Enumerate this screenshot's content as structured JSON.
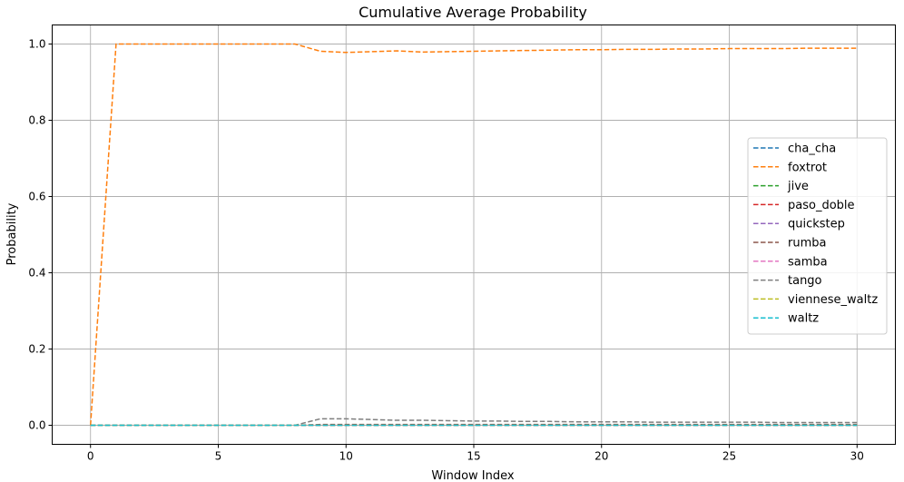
{
  "chart_data": {
    "type": "line",
    "title": "Cumulative Average Probability",
    "xlabel": "Window Index",
    "ylabel": "Probability",
    "xlim": [
      -1.5,
      31.5
    ],
    "ylim": [
      -0.05,
      1.05
    ],
    "xticks": [
      0,
      5,
      10,
      15,
      20,
      25,
      30
    ],
    "xtick_labels": [
      "0",
      "5",
      "10",
      "15",
      "20",
      "25",
      "30"
    ],
    "yticks": [
      0.0,
      0.2,
      0.4,
      0.6,
      0.8,
      1.0
    ],
    "ytick_labels": [
      "0.0",
      "0.2",
      "0.4",
      "0.6",
      "0.8",
      "1.0"
    ],
    "grid": true,
    "legend_position": "center-right",
    "line_style": "dashed",
    "x": [
      0,
      1,
      2,
      3,
      4,
      5,
      6,
      7,
      8,
      9,
      10,
      11,
      12,
      13,
      14,
      15,
      16,
      17,
      18,
      19,
      20,
      21,
      22,
      23,
      24,
      25,
      26,
      27,
      28,
      29,
      30
    ],
    "series": [
      {
        "name": "cha_cha",
        "color": "#1f77b4",
        "values": [
          0,
          0,
          0,
          0,
          0,
          0,
          0,
          0,
          0,
          0,
          0,
          0,
          0,
          0,
          0,
          0,
          0,
          0,
          0,
          0,
          0,
          0,
          0,
          0,
          0,
          0,
          0,
          0,
          0,
          0,
          0
        ]
      },
      {
        "name": "foxtrot",
        "color": "#ff7f0e",
        "values": [
          0,
          1.0,
          1.0,
          1.0,
          1.0,
          1.0,
          1.0,
          1.0,
          1.0,
          0.981,
          0.978,
          0.98,
          0.982,
          0.979,
          0.98,
          0.981,
          0.982,
          0.983,
          0.984,
          0.985,
          0.985,
          0.986,
          0.986,
          0.987,
          0.987,
          0.988,
          0.988,
          0.988,
          0.989,
          0.989,
          0.989
        ]
      },
      {
        "name": "jive",
        "color": "#2ca02c",
        "values": [
          0,
          0,
          0,
          0,
          0,
          0,
          0,
          0,
          0,
          0,
          0,
          0,
          0,
          0,
          0,
          0,
          0,
          0,
          0,
          0,
          0,
          0,
          0,
          0,
          0,
          0,
          0,
          0,
          0,
          0,
          0
        ]
      },
      {
        "name": "paso_doble",
        "color": "#d62728",
        "values": [
          0,
          0,
          0,
          0,
          0,
          0,
          0,
          0,
          0,
          0,
          0,
          0,
          0,
          0,
          0,
          0,
          0,
          0,
          0,
          0,
          0,
          0,
          0,
          0,
          0,
          0,
          0,
          0,
          0,
          0,
          0
        ]
      },
      {
        "name": "quickstep",
        "color": "#9467bd",
        "values": [
          0,
          0,
          0,
          0,
          0,
          0,
          0,
          0,
          0,
          0,
          0,
          0,
          0,
          0,
          0,
          0,
          0,
          0,
          0,
          0,
          0,
          0,
          0,
          0,
          0,
          0,
          0,
          0,
          0,
          0,
          0
        ]
      },
      {
        "name": "rumba",
        "color": "#8c564b",
        "values": [
          0,
          0,
          0,
          0,
          0,
          0,
          0,
          0,
          0,
          0.002,
          0.002,
          0.002,
          0.002,
          0.002,
          0.002,
          0.002,
          0.002,
          0.002,
          0.002,
          0.002,
          0.002,
          0.002,
          0.002,
          0.002,
          0.002,
          0.002,
          0.002,
          0.002,
          0.002,
          0.002,
          0.002
        ]
      },
      {
        "name": "samba",
        "color": "#e377c2",
        "values": [
          0,
          0,
          0,
          0,
          0,
          0,
          0,
          0,
          0,
          0,
          0,
          0,
          0,
          0,
          0,
          0,
          0,
          0,
          0,
          0,
          0,
          0,
          0,
          0,
          0,
          0,
          0,
          0,
          0,
          0,
          0
        ]
      },
      {
        "name": "tango",
        "color": "#7f7f7f",
        "values": [
          0,
          0,
          0,
          0,
          0,
          0,
          0,
          0,
          0,
          0.017,
          0.017,
          0.015,
          0.013,
          0.013,
          0.012,
          0.011,
          0.011,
          0.01,
          0.01,
          0.009,
          0.009,
          0.009,
          0.008,
          0.008,
          0.008,
          0.008,
          0.008,
          0.007,
          0.007,
          0.007,
          0.007
        ]
      },
      {
        "name": "viennese_waltz",
        "color": "#bcbd22",
        "values": [
          0,
          0,
          0,
          0,
          0,
          0,
          0,
          0,
          0,
          0,
          0,
          0,
          0,
          0,
          0,
          0,
          0,
          0,
          0,
          0,
          0,
          0,
          0,
          0,
          0,
          0,
          0,
          0,
          0,
          0,
          0
        ]
      },
      {
        "name": "waltz",
        "color": "#17becf",
        "values": [
          0,
          0,
          0,
          0,
          0,
          0,
          0,
          0,
          0,
          0,
          0,
          0,
          0,
          0,
          0,
          0,
          0,
          0,
          0,
          0,
          0,
          0,
          0,
          0,
          0,
          0,
          0,
          0,
          0,
          0,
          0
        ]
      }
    ]
  }
}
